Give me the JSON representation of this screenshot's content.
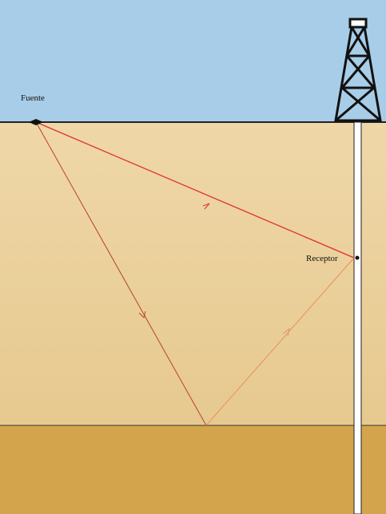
{
  "labels": {
    "source": "Fuente",
    "receiver": "Receptor"
  }
}
